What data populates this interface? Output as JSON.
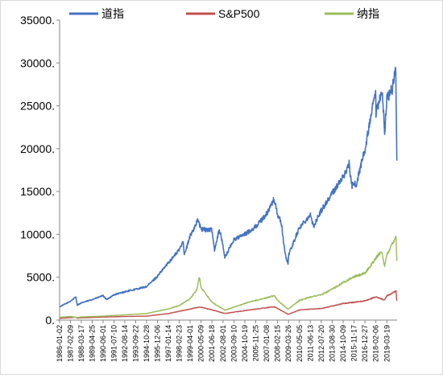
{
  "chart_data": {
    "type": "line",
    "title": "",
    "xlabel": "",
    "ylabel": "",
    "ylim": [
      0,
      35000
    ],
    "y_ticks": [
      "0.",
      "5000.",
      "10000.",
      "15000.",
      "20000.",
      "25000.",
      "30000.",
      "35000."
    ],
    "x_ticks": [
      "1986-01-02",
      "1987-02-09",
      "1988-03-17",
      "1989-04-25",
      "1990-06-01",
      "1991-07-10",
      "1992-08-14",
      "1993-09-22",
      "1994-10-28",
      "1995-12-06",
      "1997-01-14",
      "1998-02-23",
      "1999-04-01",
      "2000-05-09",
      "2001-06-18",
      "2002-08-01",
      "2003-09-10",
      "2004-10-19",
      "2005-11-25",
      "2007-01-08",
      "2008-02-15",
      "2009-03-26",
      "2010-05-05",
      "2011-06-13",
      "2012-07-20",
      "2013-08-30",
      "2014-10-09",
      "2015-11-17",
      "2016-12-27",
      "2018-02-06",
      "2019-03-19"
    ],
    "grid": false,
    "legend_position": "top",
    "series": [
      {
        "name": "道指",
        "color": "#4472c4",
        "x": [
          "1986-01-02",
          "1987-02-09",
          "1987-08-25",
          "1987-10-20",
          "1988-03-17",
          "1989-04-25",
          "1990-06-01",
          "1990-10-11",
          "1991-07-10",
          "1992-08-14",
          "1993-09-22",
          "1994-10-28",
          "1995-12-06",
          "1997-01-14",
          "1998-02-23",
          "1998-07-17",
          "1998-08-31",
          "1999-04-01",
          "2000-01-14",
          "2000-05-09",
          "2001-06-18",
          "2001-09-21",
          "2002-03-19",
          "2002-08-01",
          "2002-10-09",
          "2003-09-10",
          "2004-10-19",
          "2005-11-25",
          "2007-01-08",
          "2007-10-09",
          "2008-02-15",
          "2008-06-27",
          "2008-11-20",
          "2009-03-09",
          "2009-03-26",
          "2010-05-05",
          "2011-06-13",
          "2011-10-03",
          "2012-07-20",
          "2013-08-30",
          "2014-10-09",
          "2015-05-19",
          "2015-08-25",
          "2016-02-11",
          "2016-12-27",
          "2018-01-26",
          "2018-02-09",
          "2018-10-03",
          "2018-12-24",
          "2019-03-19",
          "2019-10-01",
          "2020-02-12",
          "2020-03-23"
        ],
        "values": [
          1550,
          2200,
          2700,
          1750,
          2000,
          2400,
          2850,
          2400,
          2950,
          3300,
          3600,
          3900,
          5100,
          6700,
          8200,
          9300,
          7600,
          9800,
          11700,
          10600,
          10500,
          8200,
          10600,
          8700,
          7300,
          9400,
          10000,
          10900,
          12400,
          14100,
          12300,
          11400,
          7700,
          6550,
          7600,
          10800,
          12300,
          10900,
          12800,
          14800,
          16700,
          18200,
          15700,
          15900,
          19900,
          26600,
          24000,
          26800,
          21800,
          25900,
          26900,
          29500,
          18600
        ]
      },
      {
        "name": "S&P500",
        "color": "#c0504d",
        "x": [
          "1986-01-02",
          "1987-02-09",
          "1987-08-25",
          "1987-10-20",
          "1988-03-17",
          "1990-06-01",
          "1992-08-14",
          "1994-10-28",
          "1995-12-06",
          "1997-01-14",
          "1998-02-23",
          "1999-04-01",
          "2000-03-24",
          "2001-06-18",
          "2002-10-09",
          "2004-10-19",
          "2007-10-09",
          "2008-02-15",
          "2009-03-09",
          "2010-05-05",
          "2011-06-13",
          "2012-07-20",
          "2013-08-30",
          "2014-10-09",
          "2015-11-17",
          "2016-12-27",
          "2018-02-06",
          "2018-12-24",
          "2019-03-19",
          "2020-02-19",
          "2020-03-23"
        ],
        "values": [
          210,
          280,
          335,
          225,
          265,
          360,
          420,
          465,
          610,
          760,
          1030,
          1290,
          1530,
          1200,
          775,
          1110,
          1560,
          1350,
          680,
          1170,
          1280,
          1350,
          1640,
          1930,
          2080,
          2260,
          2700,
          2350,
          2830,
          3380,
          2240
        ]
      },
      {
        "name": "纳指",
        "color": "#9bbb59",
        "x": [
          "1986-01-02",
          "1987-02-09",
          "1987-10-20",
          "1988-03-17",
          "1990-06-01",
          "1992-08-14",
          "1994-10-28",
          "1995-12-06",
          "1997-01-14",
          "1998-02-23",
          "1999-04-01",
          "1999-12-01",
          "2000-03-10",
          "2000-05-09",
          "2001-06-18",
          "2002-10-09",
          "2004-10-19",
          "2007-10-31",
          "2008-02-15",
          "2009-03-09",
          "2010-05-05",
          "2011-06-13",
          "2012-07-20",
          "2013-08-30",
          "2014-10-09",
          "2015-11-17",
          "2016-12-27",
          "2018-08-29",
          "2018-12-24",
          "2019-03-19",
          "2020-02-19",
          "2020-03-23"
        ],
        "values": [
          330,
          420,
          300,
          370,
          460,
          610,
          760,
          1040,
          1300,
          1700,
          2500,
          3500,
          5050,
          3800,
          2100,
          1150,
          1950,
          2850,
          2300,
          1270,
          2300,
          2700,
          2950,
          3600,
          4400,
          5050,
          5450,
          8100,
          6200,
          7600,
          9800,
          6900
        ]
      }
    ]
  }
}
